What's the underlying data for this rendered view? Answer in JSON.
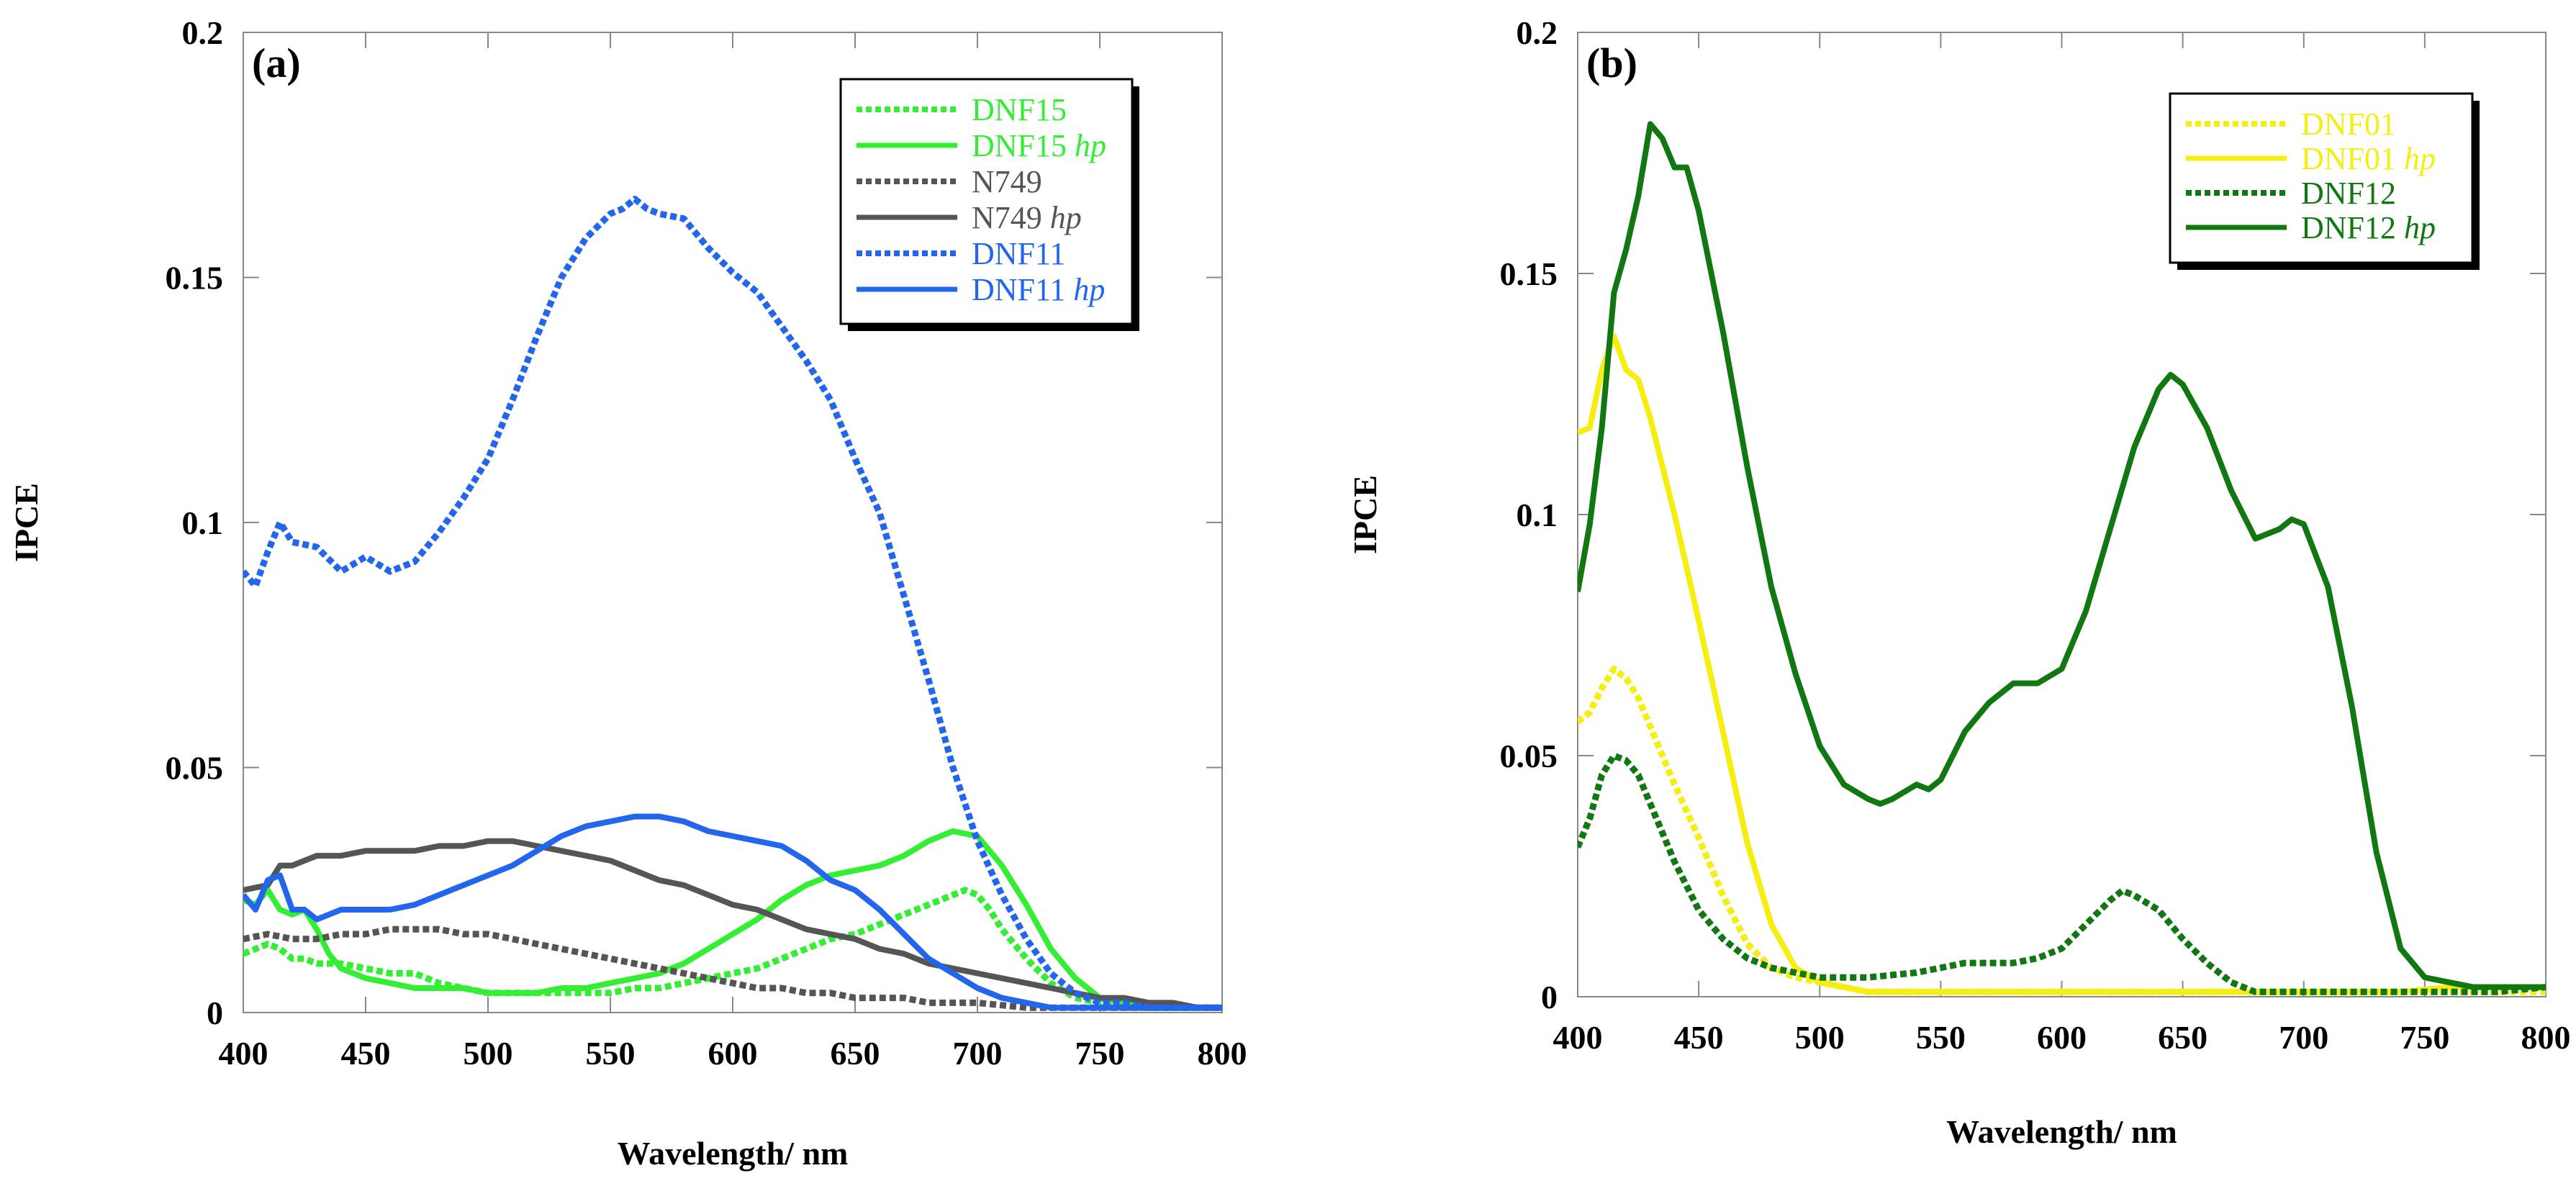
{
  "chart_data": [
    {
      "type": "line",
      "panel_label": "(a)",
      "xlabel": "Wavelength/ nm",
      "ylabel": "IPCE",
      "xlim": [
        400,
        800
      ],
      "ylim": [
        0,
        0.2
      ],
      "xticks": [
        400,
        450,
        500,
        550,
        600,
        650,
        700,
        750,
        800
      ],
      "xtick_labels": [
        "400",
        "450",
        "500",
        "550",
        "600",
        "650",
        "700",
        "750",
        "800"
      ],
      "yticks": [
        0,
        0.05,
        0.1,
        0.15,
        0.2
      ],
      "ytick_labels": [
        "0",
        "0.05",
        "0.1",
        "0.15",
        "0.2"
      ],
      "legend_position": "top-right",
      "series": [
        {
          "name": "DNF15",
          "legend_main": "DNF15",
          "legend_hp": "",
          "color": "#33ee33",
          "style": "dashed",
          "x": [
            400,
            405,
            410,
            415,
            420,
            425,
            430,
            440,
            450,
            460,
            470,
            480,
            490,
            500,
            510,
            520,
            530,
            540,
            550,
            560,
            570,
            580,
            590,
            600,
            610,
            620,
            630,
            640,
            650,
            660,
            670,
            680,
            690,
            695,
            700,
            705,
            710,
            720,
            730,
            740,
            750,
            760,
            770,
            780,
            790,
            800
          ],
          "y": [
            0.012,
            0.013,
            0.014,
            0.013,
            0.011,
            0.011,
            0.01,
            0.01,
            0.009,
            0.008,
            0.008,
            0.006,
            0.005,
            0.004,
            0.004,
            0.004,
            0.004,
            0.004,
            0.004,
            0.005,
            0.005,
            0.006,
            0.007,
            0.008,
            0.009,
            0.011,
            0.013,
            0.015,
            0.016,
            0.018,
            0.02,
            0.022,
            0.024,
            0.025,
            0.024,
            0.021,
            0.017,
            0.011,
            0.006,
            0.003,
            0.002,
            0.001,
            0.001,
            0.001,
            0.001,
            0.001
          ]
        },
        {
          "name": "DNF15 hp",
          "legend_main": "DNF15 ",
          "legend_hp": "hp",
          "color": "#33ee33",
          "style": "solid",
          "x": [
            400,
            405,
            410,
            415,
            420,
            425,
            430,
            435,
            440,
            450,
            460,
            470,
            480,
            490,
            500,
            510,
            520,
            530,
            540,
            550,
            560,
            570,
            580,
            590,
            600,
            610,
            620,
            630,
            640,
            650,
            660,
            670,
            680,
            690,
            700,
            710,
            720,
            730,
            740,
            750,
            760,
            770,
            780,
            790,
            800
          ],
          "y": [
            0.023,
            0.022,
            0.025,
            0.021,
            0.02,
            0.021,
            0.017,
            0.012,
            0.009,
            0.007,
            0.006,
            0.005,
            0.005,
            0.005,
            0.004,
            0.004,
            0.004,
            0.005,
            0.005,
            0.006,
            0.007,
            0.008,
            0.01,
            0.013,
            0.016,
            0.019,
            0.023,
            0.026,
            0.028,
            0.029,
            0.03,
            0.032,
            0.035,
            0.037,
            0.036,
            0.03,
            0.022,
            0.013,
            0.007,
            0.003,
            0.002,
            0.001,
            0.001,
            0.001,
            0.001
          ]
        },
        {
          "name": "N749",
          "legend_main": "N749",
          "legend_hp": "",
          "color": "#555555",
          "style": "dashed",
          "x": [
            400,
            410,
            420,
            430,
            440,
            450,
            460,
            470,
            480,
            490,
            500,
            510,
            520,
            530,
            540,
            550,
            560,
            570,
            580,
            590,
            600,
            610,
            620,
            630,
            640,
            650,
            660,
            670,
            680,
            690,
            700,
            720,
            740,
            760,
            780,
            800
          ],
          "y": [
            0.015,
            0.016,
            0.015,
            0.015,
            0.016,
            0.016,
            0.017,
            0.017,
            0.017,
            0.016,
            0.016,
            0.015,
            0.014,
            0.013,
            0.012,
            0.011,
            0.01,
            0.009,
            0.008,
            0.007,
            0.006,
            0.005,
            0.005,
            0.004,
            0.004,
            0.003,
            0.003,
            0.003,
            0.002,
            0.002,
            0.002,
            0.001,
            0.001,
            0.001,
            0.001,
            0.001
          ]
        },
        {
          "name": "N749 hp",
          "legend_main": "N749 ",
          "legend_hp": "hp",
          "color": "#555555",
          "style": "solid",
          "x": [
            400,
            410,
            415,
            420,
            430,
            440,
            450,
            460,
            470,
            480,
            490,
            500,
            510,
            520,
            530,
            540,
            550,
            560,
            570,
            580,
            590,
            600,
            610,
            620,
            630,
            640,
            650,
            660,
            670,
            680,
            690,
            700,
            710,
            720,
            730,
            740,
            750,
            760,
            770,
            780,
            790,
            800
          ],
          "y": [
            0.025,
            0.026,
            0.03,
            0.03,
            0.032,
            0.032,
            0.033,
            0.033,
            0.033,
            0.034,
            0.034,
            0.035,
            0.035,
            0.034,
            0.033,
            0.032,
            0.031,
            0.029,
            0.027,
            0.026,
            0.024,
            0.022,
            0.021,
            0.019,
            0.017,
            0.016,
            0.015,
            0.013,
            0.012,
            0.01,
            0.009,
            0.008,
            0.007,
            0.006,
            0.005,
            0.004,
            0.003,
            0.003,
            0.002,
            0.002,
            0.001,
            0.001
          ]
        },
        {
          "name": "DNF11",
          "legend_main": "DNF11",
          "legend_hp": "",
          "color": "#2266ee",
          "style": "dashed",
          "x": [
            400,
            405,
            410,
            415,
            420,
            430,
            440,
            450,
            460,
            470,
            480,
            490,
            500,
            510,
            520,
            530,
            540,
            550,
            555,
            560,
            565,
            570,
            580,
            590,
            600,
            610,
            620,
            630,
            640,
            650,
            660,
            670,
            680,
            690,
            700,
            710,
            720,
            730,
            740,
            750,
            760,
            770,
            780,
            790,
            800
          ],
          "y": [
            0.09,
            0.087,
            0.094,
            0.1,
            0.096,
            0.095,
            0.09,
            0.093,
            0.09,
            0.092,
            0.098,
            0.105,
            0.113,
            0.125,
            0.138,
            0.15,
            0.158,
            0.163,
            0.164,
            0.166,
            0.164,
            0.163,
            0.162,
            0.156,
            0.151,
            0.147,
            0.14,
            0.133,
            0.125,
            0.113,
            0.102,
            0.085,
            0.068,
            0.05,
            0.035,
            0.024,
            0.015,
            0.008,
            0.004,
            0.002,
            0.002,
            0.001,
            0.001,
            0.001,
            0.001
          ]
        },
        {
          "name": "DNF11 hp",
          "legend_main": "DNF11 ",
          "legend_hp": "hp",
          "color": "#2266ee",
          "style": "solid",
          "x": [
            400,
            405,
            410,
            415,
            420,
            425,
            430,
            440,
            450,
            460,
            470,
            480,
            490,
            500,
            510,
            520,
            530,
            540,
            550,
            560,
            570,
            580,
            590,
            600,
            610,
            620,
            630,
            640,
            650,
            660,
            670,
            680,
            690,
            700,
            710,
            720,
            730,
            740,
            750,
            760,
            770,
            780,
            790,
            800
          ],
          "y": [
            0.024,
            0.021,
            0.027,
            0.028,
            0.021,
            0.021,
            0.019,
            0.021,
            0.021,
            0.021,
            0.022,
            0.024,
            0.026,
            0.028,
            0.03,
            0.033,
            0.036,
            0.038,
            0.039,
            0.04,
            0.04,
            0.039,
            0.037,
            0.036,
            0.035,
            0.034,
            0.031,
            0.027,
            0.025,
            0.021,
            0.016,
            0.011,
            0.008,
            0.005,
            0.003,
            0.002,
            0.001,
            0.001,
            0.001,
            0.001,
            0.001,
            0.001,
            0.001,
            0.001
          ]
        }
      ]
    },
    {
      "type": "line",
      "panel_label": "(b)",
      "xlabel": "Wavelength/ nm",
      "ylabel": "IPCE",
      "xlim": [
        400,
        800
      ],
      "ylim": [
        0,
        0.2
      ],
      "xticks": [
        400,
        450,
        500,
        550,
        600,
        650,
        700,
        750,
        800
      ],
      "xtick_labels": [
        "400",
        "450",
        "500",
        "550",
        "600",
        "650",
        "700",
        "750",
        "800"
      ],
      "yticks": [
        0,
        0.05,
        0.1,
        0.15,
        0.2
      ],
      "ytick_labels": [
        "0",
        "0.05",
        "0.1",
        "0.15",
        "0.2"
      ],
      "legend_position": "top-right",
      "series": [
        {
          "name": "DNF01",
          "legend_main": "DNF01",
          "legend_hp": "",
          "color": "#f5ee10",
          "style": "dashed",
          "x": [
            400,
            405,
            410,
            415,
            420,
            425,
            430,
            440,
            450,
            460,
            470,
            480,
            490,
            500,
            510,
            520,
            530,
            540,
            550,
            560,
            580,
            600,
            620,
            640,
            660,
            680,
            700,
            720,
            740,
            760,
            780,
            800
          ],
          "y": [
            0.057,
            0.059,
            0.064,
            0.068,
            0.066,
            0.062,
            0.056,
            0.044,
            0.033,
            0.021,
            0.011,
            0.006,
            0.004,
            0.003,
            0.002,
            0.001,
            0.001,
            0.001,
            0.001,
            0.001,
            0.001,
            0.001,
            0.001,
            0.001,
            0.001,
            0.001,
            0.001,
            0.001,
            0.001,
            0.001,
            0.001,
            0.001
          ]
        },
        {
          "name": "DNF01 hp",
          "legend_main": "DNF01 ",
          "legend_hp": "hp",
          "color": "#f5ee10",
          "style": "solid",
          "x": [
            400,
            405,
            410,
            415,
            420,
            425,
            430,
            440,
            450,
            460,
            470,
            480,
            490,
            500,
            510,
            520,
            540,
            560,
            580,
            600,
            620,
            640,
            660,
            680,
            700,
            720,
            740,
            760,
            780,
            800
          ],
          "y": [
            0.117,
            0.118,
            0.13,
            0.137,
            0.13,
            0.128,
            0.12,
            0.1,
            0.078,
            0.055,
            0.032,
            0.015,
            0.006,
            0.003,
            0.002,
            0.001,
            0.001,
            0.001,
            0.001,
            0.001,
            0.001,
            0.001,
            0.001,
            0.001,
            0.001,
            0.001,
            0.001,
            0.002,
            0.002,
            0.002
          ]
        },
        {
          "name": "DNF12",
          "legend_main": "DNF12",
          "legend_hp": "",
          "color": "#117711",
          "style": "dashed",
          "x": [
            400,
            405,
            410,
            415,
            420,
            425,
            430,
            440,
            450,
            460,
            470,
            480,
            490,
            500,
            510,
            520,
            540,
            550,
            560,
            580,
            590,
            600,
            610,
            620,
            625,
            630,
            640,
            650,
            660,
            670,
            680,
            690,
            700,
            720,
            740,
            760,
            780,
            800
          ],
          "y": [
            0.031,
            0.037,
            0.046,
            0.05,
            0.049,
            0.046,
            0.04,
            0.028,
            0.018,
            0.012,
            0.008,
            0.006,
            0.005,
            0.004,
            0.004,
            0.004,
            0.005,
            0.006,
            0.007,
            0.007,
            0.008,
            0.01,
            0.015,
            0.02,
            0.022,
            0.021,
            0.018,
            0.012,
            0.007,
            0.003,
            0.001,
            0.001,
            0.001,
            0.001,
            0.001,
            0.001,
            0.001,
            0.002
          ]
        },
        {
          "name": "DNF12 hp",
          "legend_main": "DNF12 ",
          "legend_hp": "hp",
          "color": "#117711",
          "style": "solid",
          "x": [
            400,
            405,
            410,
            415,
            420,
            425,
            430,
            435,
            440,
            445,
            450,
            460,
            470,
            480,
            490,
            500,
            510,
            520,
            525,
            530,
            540,
            545,
            550,
            560,
            570,
            580,
            590,
            600,
            610,
            620,
            630,
            640,
            645,
            650,
            660,
            670,
            680,
            690,
            695,
            700,
            710,
            720,
            730,
            740,
            750,
            760,
            770,
            780,
            790,
            800
          ],
          "y": [
            0.084,
            0.098,
            0.118,
            0.146,
            0.155,
            0.166,
            0.181,
            0.178,
            0.172,
            0.172,
            0.163,
            0.138,
            0.11,
            0.085,
            0.067,
            0.052,
            0.044,
            0.041,
            0.04,
            0.041,
            0.044,
            0.043,
            0.045,
            0.055,
            0.061,
            0.065,
            0.065,
            0.068,
            0.08,
            0.097,
            0.114,
            0.126,
            0.129,
            0.127,
            0.118,
            0.105,
            0.095,
            0.097,
            0.099,
            0.098,
            0.085,
            0.06,
            0.03,
            0.01,
            0.004,
            0.003,
            0.002,
            0.002,
            0.002,
            0.002
          ]
        }
      ]
    }
  ]
}
